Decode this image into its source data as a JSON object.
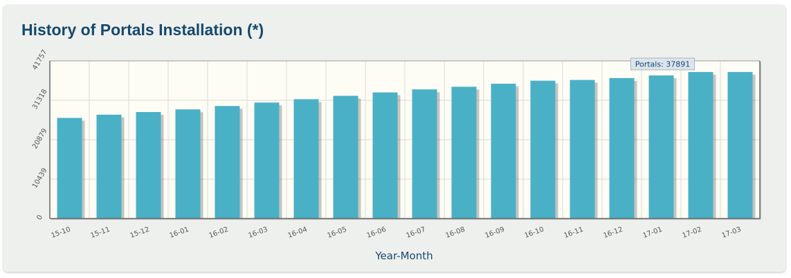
{
  "page": {
    "title": "History of Portals Installation (*)"
  },
  "colors": {
    "bar": "#4ab0c6",
    "plot_background": "#fdfdf6",
    "grid": "#dcdcd2",
    "axis": "#666666",
    "title": "#15496e",
    "tooltip_background": "#dde4ec"
  },
  "chart_data": {
    "type": "bar",
    "title": "",
    "xlabel": "Year-Month",
    "ylabel": "",
    "ylim": [
      0,
      41757
    ],
    "yticks": [
      "0",
      "10439",
      "20879",
      "31318",
      "41757"
    ],
    "grid": true,
    "categories": [
      "15-10",
      "15-11",
      "15-12",
      "16-01",
      "16-02",
      "16-03",
      "16-04",
      "16-05",
      "16-06",
      "16-07",
      "16-08",
      "16-09",
      "16-10",
      "16-11",
      "16-12",
      "17-01",
      "17-02",
      "17-03"
    ],
    "series": [
      {
        "values": [
          26650,
          27500,
          28200,
          28900,
          29800,
          30700,
          31600,
          32500,
          33400,
          34200,
          34900,
          35700,
          36500,
          36700,
          37200,
          37891,
          38800,
          38800
        ]
      }
    ],
    "tooltip": {
      "text": "Portals: 37891",
      "category": "17-01"
    }
  }
}
